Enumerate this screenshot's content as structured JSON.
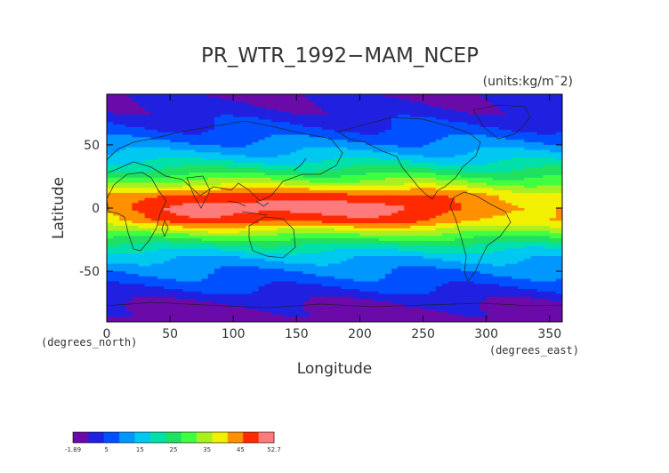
{
  "chart_data": {
    "type": "heatmap",
    "title": "PR_WTR_1992−MAM_NCEP",
    "units_label": "(units:kg/m¯2)",
    "xlabel": "Longitude",
    "ylabel": "Latitude",
    "x_unit_label": "(degrees_east)",
    "y_unit_label": "(degrees_north)",
    "xlim": [
      0,
      360
    ],
    "ylim": [
      -90,
      90
    ],
    "x_ticks": [
      0,
      50,
      100,
      150,
      200,
      250,
      300,
      350
    ],
    "y_ticks": [
      -50,
      0,
      50
    ],
    "grid": false,
    "colorbar": {
      "orientation": "horizontal",
      "placement": "bottom-left",
      "labels": [
        "-1.89",
        "5",
        "15",
        "25",
        "35",
        "45",
        "52.7"
      ],
      "min": -1.89,
      "max": 52.7,
      "colors": [
        "#6a0aa8",
        "#2020e0",
        "#0050ff",
        "#0098ff",
        "#00c8f0",
        "#00e0a8",
        "#20e060",
        "#40ff40",
        "#a8f020",
        "#f0f000",
        "#ff9000",
        "#ff2a00",
        "#ff7a7a"
      ]
    },
    "zonal_profile": {
      "latitudes": [
        90,
        75,
        60,
        50,
        40,
        30,
        20,
        10,
        0,
        -10,
        -20,
        -30,
        -40,
        -50,
        -60,
        -70,
        -80,
        -90
      ],
      "precipitable_water_kg_m2": [
        2,
        4,
        8,
        12,
        17,
        24,
        33,
        44,
        47,
        44,
        32,
        22,
        15,
        11,
        8,
        4,
        1,
        0
      ]
    }
  }
}
